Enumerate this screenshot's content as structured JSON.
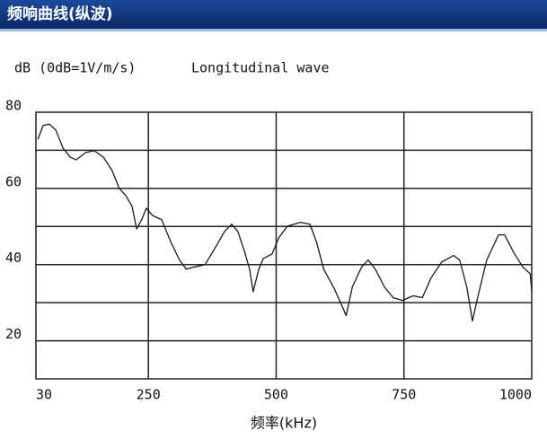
{
  "header": {
    "title": "频响曲线(纵波)"
  },
  "chart_data": {
    "type": "line",
    "ylabel": "dB (0dB=1V/m/s)",
    "subtitle": "Longitudinal wave",
    "xlabel": "频率(kHz)",
    "x": [
      34,
      44,
      56,
      69,
      83,
      97,
      109,
      127,
      144,
      162,
      179,
      193,
      206,
      218,
      227,
      237,
      246,
      258,
      276,
      294,
      311,
      324,
      338,
      361,
      382,
      399,
      413,
      425,
      438,
      448,
      455,
      466,
      475,
      492,
      505,
      522,
      548,
      566,
      579,
      593,
      614,
      628,
      637,
      649,
      667,
      680,
      694,
      712,
      729,
      747,
      768,
      786,
      803,
      824,
      847,
      859,
      873,
      884,
      895,
      912,
      935,
      947,
      965,
      983,
      997,
      1000
    ],
    "series": [
      {
        "color": "#1a1a1a",
        "values": [
          72.9,
          76.5,
          76.9,
          75.3,
          70.6,
          68.2,
          67.5,
          69.4,
          69.9,
          68.2,
          64.7,
          60,
          58.1,
          55.3,
          49.4,
          51.8,
          54.8,
          52.9,
          51.8,
          45.9,
          41.2,
          38.8,
          39.3,
          40,
          44.7,
          48.7,
          50.6,
          48.7,
          43.5,
          38.8,
          32.9,
          38.8,
          41.6,
          42.8,
          47,
          50.1,
          51.1,
          50.6,
          45.9,
          38.8,
          33.6,
          29.4,
          26.6,
          34.1,
          39.3,
          41.2,
          38.8,
          34.1,
          31.3,
          30.6,
          31.8,
          31.3,
          36.5,
          40.7,
          42.4,
          41.2,
          34.1,
          25.2,
          31.8,
          41.2,
          47.8,
          47.8,
          43.1,
          39.3,
          37.6,
          32.9
        ]
      }
    ],
    "xlim": [
      30,
      1000
    ],
    "xticks": [
      30,
      250,
      500,
      750,
      1000
    ],
    "ylim": [
      10,
      80
    ],
    "yticks": [
      20,
      40,
      60,
      80
    ],
    "ygrid": [
      20,
      30,
      40,
      50,
      60,
      70
    ],
    "grid": true
  }
}
